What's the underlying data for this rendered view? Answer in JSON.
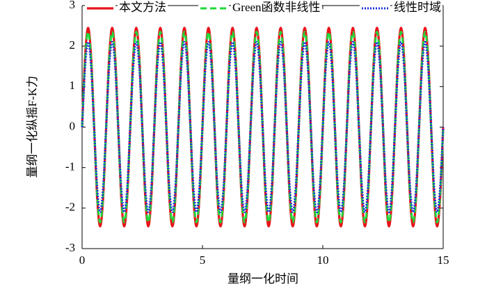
{
  "chart_data": {
    "type": "line",
    "xlabel": "量纲一化时间",
    "ylabel": "量纲一化纵摇F-K力",
    "xlim": [
      0,
      15
    ],
    "xticks": [
      0,
      5,
      10,
      15
    ],
    "ylim": [
      -3,
      3
    ],
    "yticks": [
      -3,
      -2,
      -1,
      0,
      1,
      2,
      3
    ],
    "legend": "top",
    "x": [
      0,
      0.125,
      0.25,
      0.375,
      0.5,
      0.625,
      0.75,
      0.875,
      1,
      1.125,
      1.25,
      1.375,
      1.5,
      1.625,
      1.75,
      1.875,
      2,
      2.125,
      2.25,
      2.375,
      2.5,
      2.625,
      2.75,
      2.875,
      3,
      3.125,
      3.25,
      3.375,
      3.5,
      3.625,
      3.75,
      3.875,
      4,
      4.125,
      4.25,
      4.375,
      4.5,
      4.625,
      4.75,
      4.875,
      5,
      5.125,
      5.25,
      5.375,
      5.5,
      5.625,
      5.75,
      5.875,
      6,
      6.125,
      6.25,
      6.375,
      6.5,
      6.625,
      6.75,
      6.875,
      7,
      7.125,
      7.25,
      7.375,
      7.5,
      7.625,
      7.75,
      7.875,
      8,
      8.125,
      8.25,
      8.375,
      8.5,
      8.625,
      8.75,
      8.875,
      9,
      9.125,
      9.25,
      9.375,
      9.5,
      9.625,
      9.75,
      9.875,
      10,
      10.125,
      10.25,
      10.375,
      10.5,
      10.625,
      10.75,
      10.875,
      11,
      11.125,
      11.25,
      11.375,
      11.5,
      11.625,
      11.75,
      11.875,
      12,
      12.125,
      12.25,
      12.375,
      12.5,
      12.625,
      12.75,
      12.875,
      13,
      13.125,
      13.25,
      13.375,
      13.5,
      13.625,
      13.75,
      13.875,
      14,
      14.125,
      14.25,
      14.375,
      14.5,
      14.625,
      14.75,
      14.875,
      15
    ],
    "series": [
      {
        "name": "本文方法",
        "color": "#e8141b",
        "style": "solid",
        "values": [
          0,
          1.73,
          2.45,
          1.73,
          0,
          -1.73,
          -2.45,
          -1.73,
          0,
          1.73,
          2.45,
          1.73,
          0,
          -1.73,
          -2.45,
          -1.73,
          0,
          1.73,
          2.45,
          1.73,
          0,
          -1.73,
          -2.45,
          -1.73,
          0,
          1.73,
          2.45,
          1.73,
          0,
          -1.73,
          -2.45,
          -1.73,
          0,
          1.73,
          2.45,
          1.73,
          0,
          -1.73,
          -2.45,
          -1.73,
          0,
          1.73,
          2.45,
          1.73,
          0,
          -1.73,
          -2.45,
          -1.73,
          0,
          1.73,
          2.45,
          1.73,
          0,
          -1.73,
          -2.45,
          -1.73,
          0,
          1.73,
          2.45,
          1.73,
          0,
          -1.73,
          -2.45,
          -1.73,
          0,
          1.73,
          2.45,
          1.73,
          0,
          -1.73,
          -2.45,
          -1.73,
          0,
          1.73,
          2.45,
          1.73,
          0,
          -1.73,
          -2.45,
          -1.73,
          0,
          1.73,
          2.45,
          1.73,
          0,
          -1.73,
          -2.45,
          -1.73,
          0,
          1.73,
          2.45,
          1.73,
          0,
          -1.73,
          -2.45,
          -1.73,
          0,
          1.73,
          2.45,
          1.73,
          0,
          -1.73,
          -2.45,
          -1.73,
          0,
          1.73,
          2.45,
          1.73,
          0,
          -1.73,
          -2.45,
          -1.73,
          0,
          1.73,
          2.45,
          1.73,
          0,
          -1.73,
          -2.45,
          -1.73,
          0
        ]
      },
      {
        "name": "Green函数非线性",
        "color": "#1fd83a",
        "style": "dashed",
        "values": [
          0,
          1.66,
          2.35,
          1.66,
          0,
          -1.66,
          -2.35,
          -1.66,
          0,
          1.66,
          2.35,
          1.66,
          0,
          -1.66,
          -2.35,
          -1.66,
          0,
          1.66,
          2.35,
          1.66,
          0,
          -1.66,
          -2.35,
          -1.66,
          0,
          1.66,
          2.35,
          1.66,
          0,
          -1.66,
          -2.35,
          -1.66,
          0,
          1.66,
          2.35,
          1.66,
          0,
          -1.66,
          -2.35,
          -1.66,
          0,
          1.66,
          2.35,
          1.66,
          0,
          -1.66,
          -2.35,
          -1.66,
          0,
          1.66,
          2.35,
          1.66,
          0,
          -1.66,
          -2.35,
          -1.66,
          0,
          1.66,
          2.35,
          1.66,
          0,
          -1.66,
          -2.35,
          -1.66,
          0,
          1.66,
          2.35,
          1.66,
          0,
          -1.66,
          -2.35,
          -1.66,
          0,
          1.66,
          2.35,
          1.66,
          0,
          -1.66,
          -2.35,
          -1.66,
          0,
          1.66,
          2.35,
          1.66,
          0,
          -1.66,
          -2.35,
          -1.66,
          0,
          1.66,
          2.35,
          1.66,
          0,
          -1.66,
          -2.35,
          -1.66,
          0,
          1.66,
          2.35,
          1.66,
          0,
          -1.66,
          -2.35,
          -1.66,
          0,
          1.66,
          2.35,
          1.66,
          0,
          -1.66,
          -2.35,
          -1.66,
          0,
          1.66,
          2.35,
          1.66,
          0,
          -1.66,
          -2.35,
          -1.66,
          0
        ]
      },
      {
        "name": "线性时域",
        "color": "#1a2fe0",
        "style": "dotted",
        "values": [
          0,
          1.48,
          2.1,
          1.48,
          0,
          -1.48,
          -2.1,
          -1.48,
          0,
          1.48,
          2.1,
          1.48,
          0,
          -1.48,
          -2.1,
          -1.48,
          0,
          1.48,
          2.1,
          1.48,
          0,
          -1.48,
          -2.1,
          -1.48,
          0,
          1.48,
          2.1,
          1.48,
          0,
          -1.48,
          -2.1,
          -1.48,
          0,
          1.48,
          2.1,
          1.48,
          0,
          -1.48,
          -2.1,
          -1.48,
          0,
          1.48,
          2.1,
          1.48,
          0,
          -1.48,
          -2.1,
          -1.48,
          0,
          1.48,
          2.1,
          1.48,
          0,
          -1.48,
          -2.1,
          -1.48,
          0,
          1.48,
          2.1,
          1.48,
          0,
          -1.48,
          -2.1,
          -1.48,
          0,
          1.48,
          2.1,
          1.48,
          0,
          -1.48,
          -2.1,
          -1.48,
          0,
          1.48,
          2.1,
          1.48,
          0,
          -1.48,
          -2.1,
          -1.48,
          0,
          1.48,
          2.1,
          1.48,
          0,
          -1.48,
          -2.1,
          -1.48,
          0,
          1.48,
          2.1,
          1.48,
          0,
          -1.48,
          -2.1,
          -1.48,
          0,
          1.48,
          2.1,
          1.48,
          0,
          -1.48,
          -2.1,
          -1.48,
          0,
          1.48,
          2.1,
          1.48,
          0,
          -1.48,
          -2.1,
          -1.48,
          0,
          1.48,
          2.1,
          1.48,
          0,
          -1.48,
          -2.1,
          -1.48,
          0
        ]
      }
    ]
  }
}
